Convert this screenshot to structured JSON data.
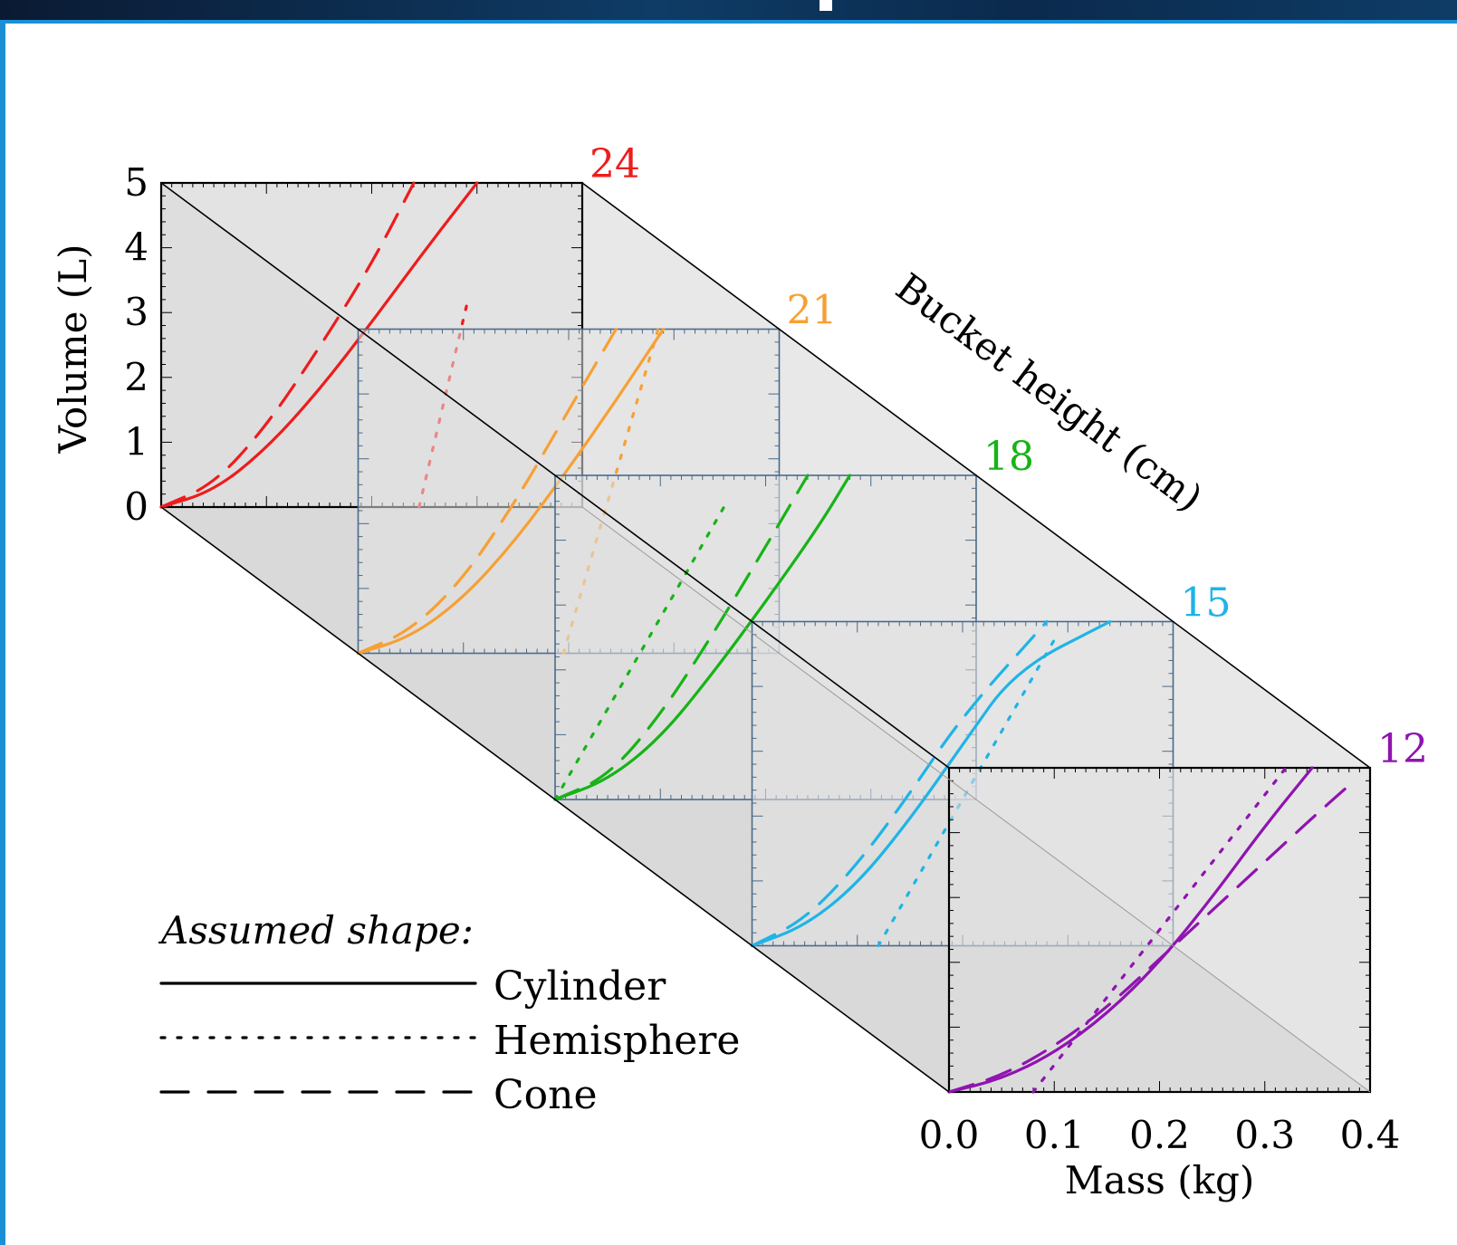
{
  "chart_data": {
    "type": "line",
    "layout": "3d-stacked",
    "xlabel": "Mass (kg)",
    "ylabel": "Volume (L)",
    "zlabel": "Bucket height (cm)",
    "xlim": [
      0.0,
      0.4
    ],
    "ylim": [
      0,
      5
    ],
    "x_ticks": [
      "0.0",
      "0.1",
      "0.2",
      "0.3",
      "0.4"
    ],
    "y_ticks": [
      "0",
      "1",
      "2",
      "3",
      "4",
      "5"
    ],
    "legend": {
      "title": "Assumed shape:",
      "entries": [
        {
          "label": "Cylinder",
          "style": "solid"
        },
        {
          "label": "Hemisphere",
          "style": "dotted"
        },
        {
          "label": "Cone",
          "style": "dashed"
        }
      ]
    },
    "panels": [
      {
        "height": "24",
        "color": "#ee1c1c",
        "series": [
          {
            "shape": "Cylinder",
            "points": [
              [
                0.0,
                0
              ],
              [
                0.05,
                0.25
              ],
              [
                0.1,
                0.9
              ],
              [
                0.15,
                1.8
              ],
              [
                0.2,
                2.85
              ],
              [
                0.25,
                3.95
              ],
              [
                0.3,
                5.0
              ]
            ]
          },
          {
            "shape": "Cone",
            "points": [
              [
                0.0,
                0
              ],
              [
                0.05,
                0.35
              ],
              [
                0.1,
                1.25
              ],
              [
                0.15,
                2.45
              ],
              [
                0.2,
                3.75
              ],
              [
                0.24,
                5.0
              ]
            ]
          },
          {
            "shape": "Hemisphere",
            "points": [
              [
                0.245,
                0
              ],
              [
                0.29,
                3.1
              ]
            ]
          }
        ]
      },
      {
        "height": "21",
        "color": "#f7a035",
        "series": [
          {
            "shape": "Cylinder",
            "points": [
              [
                0.0,
                0
              ],
              [
                0.05,
                0.25
              ],
              [
                0.1,
                0.85
              ],
              [
                0.15,
                1.75
              ],
              [
                0.2,
                2.85
              ],
              [
                0.245,
                3.9
              ],
              [
                0.29,
                5.0
              ]
            ]
          },
          {
            "shape": "Cone",
            "points": [
              [
                0.0,
                0
              ],
              [
                0.05,
                0.35
              ],
              [
                0.1,
                1.15
              ],
              [
                0.15,
                2.35
              ],
              [
                0.2,
                3.75
              ],
              [
                0.245,
                5.0
              ]
            ]
          },
          {
            "shape": "Hemisphere",
            "points": [
              [
                0.195,
                0
              ],
              [
                0.285,
                5.0
              ]
            ]
          }
        ]
      },
      {
        "height": "18",
        "color": "#17b317",
        "series": [
          {
            "shape": "Cylinder",
            "points": [
              [
                0.0,
                0
              ],
              [
                0.05,
                0.3
              ],
              [
                0.1,
                0.95
              ],
              [
                0.15,
                1.95
              ],
              [
                0.2,
                3.05
              ],
              [
                0.25,
                4.2
              ],
              [
                0.28,
                5.0
              ]
            ]
          },
          {
            "shape": "Cone",
            "points": [
              [
                0.0,
                0
              ],
              [
                0.05,
                0.35
              ],
              [
                0.1,
                1.3
              ],
              [
                0.15,
                2.55
              ],
              [
                0.2,
                3.9
              ],
              [
                0.24,
                5.0
              ]
            ]
          },
          {
            "shape": "Hemisphere",
            "points": [
              [
                0.0,
                0
              ],
              [
                0.1,
                2.8
              ],
              [
                0.16,
                4.5
              ]
            ]
          }
        ]
      },
      {
        "height": "15",
        "color": "#1fb4e6",
        "series": [
          {
            "shape": "Cylinder",
            "points": [
              [
                0.0,
                0
              ],
              [
                0.05,
                0.3
              ],
              [
                0.1,
                0.95
              ],
              [
                0.15,
                1.95
              ],
              [
                0.2,
                3.1
              ],
              [
                0.25,
                4.25
              ],
              [
                0.34,
                5.0
              ]
            ]
          },
          {
            "shape": "Cone",
            "points": [
              [
                0.0,
                0
              ],
              [
                0.05,
                0.4
              ],
              [
                0.1,
                1.25
              ],
              [
                0.15,
                2.35
              ],
              [
                0.2,
                3.55
              ],
              [
                0.28,
                5.0
              ]
            ]
          },
          {
            "shape": "Hemisphere",
            "points": [
              [
                0.12,
                0
              ],
              [
                0.29,
                4.8
              ]
            ]
          }
        ]
      },
      {
        "height": "12",
        "color": "#8f14b0",
        "series": [
          {
            "shape": "Cylinder",
            "points": [
              [
                0.0,
                0
              ],
              [
                0.05,
                0.2
              ],
              [
                0.1,
                0.6
              ],
              [
                0.15,
                1.2
              ],
              [
                0.2,
                2.0
              ],
              [
                0.25,
                3.0
              ],
              [
                0.3,
                4.1
              ],
              [
                0.345,
                5.0
              ]
            ]
          },
          {
            "shape": "Cone",
            "points": [
              [
                0.0,
                0
              ],
              [
                0.05,
                0.25
              ],
              [
                0.1,
                0.7
              ],
              [
                0.15,
                1.3
              ],
              [
                0.2,
                2.05
              ],
              [
                0.25,
                2.8
              ],
              [
                0.3,
                3.55
              ],
              [
                0.35,
                4.3
              ],
              [
                0.385,
                4.8
              ]
            ]
          },
          {
            "shape": "Hemisphere",
            "points": [
              [
                0.08,
                0
              ],
              [
                0.32,
                5.0
              ]
            ]
          }
        ]
      }
    ]
  }
}
